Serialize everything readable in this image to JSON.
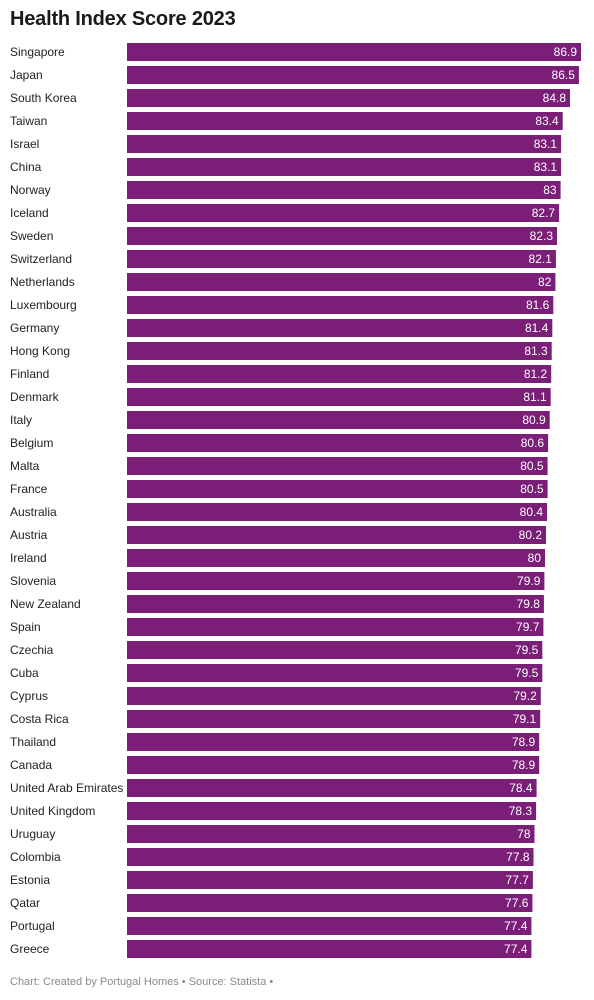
{
  "title": "Health Index Score 2023",
  "footer": "Chart: Created by Portugal Homes • Source: Statista •",
  "colors": {
    "bar": "#7a1e78",
    "value_text": "#ffffff",
    "label_text": "#222222"
  },
  "chart_data": {
    "type": "bar",
    "orientation": "horizontal",
    "title": "Health Index Score 2023",
    "xlabel": "",
    "ylabel": "",
    "grid": false,
    "xlim": [
      0,
      86.9
    ],
    "categories": [
      "Singapore",
      "Japan",
      "South Korea",
      "Taiwan",
      "Israel",
      "China",
      "Norway",
      "Iceland",
      "Sweden",
      "Switzerland",
      "Netherlands",
      "Luxembourg",
      "Germany",
      "Hong Kong",
      "Finland",
      "Denmark",
      "Italy",
      "Belgium",
      "Malta",
      "France",
      "Australia",
      "Austria",
      "Ireland",
      "Slovenia",
      "New Zealand",
      "Spain",
      "Czechia",
      "Cuba",
      "Cyprus",
      "Costa Rica",
      "Thailand",
      "Canada",
      "United Arab Emirates",
      "United Kingdom",
      "Uruguay",
      "Colombia",
      "Estonia",
      "Qatar",
      "Portugal",
      "Greece"
    ],
    "values": [
      86.9,
      86.5,
      84.8,
      83.4,
      83.1,
      83.1,
      83,
      82.7,
      82.3,
      82.1,
      82,
      81.6,
      81.4,
      81.3,
      81.2,
      81.1,
      80.9,
      80.6,
      80.5,
      80.5,
      80.4,
      80.2,
      80,
      79.9,
      79.8,
      79.7,
      79.5,
      79.5,
      79.2,
      79.1,
      78.9,
      78.9,
      78.4,
      78.3,
      78,
      77.8,
      77.7,
      77.6,
      77.4,
      77.4
    ]
  }
}
